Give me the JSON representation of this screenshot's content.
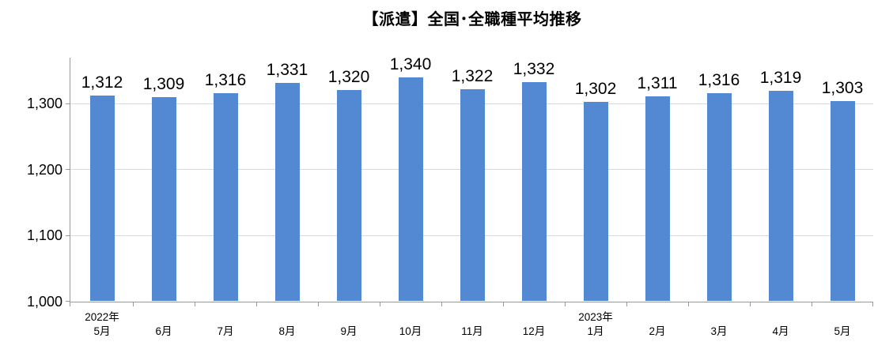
{
  "chart_data": {
    "type": "bar",
    "title": "【派遣】全国･全職種平均推移",
    "categories": [
      "5月",
      "6月",
      "7月",
      "8月",
      "9月",
      "10月",
      "11月",
      "12月",
      "1月",
      "2月",
      "3月",
      "4月",
      "5月"
    ],
    "year_annotations": [
      {
        "category_index": 0,
        "label": "2022年"
      },
      {
        "category_index": 8,
        "label": "2023年"
      }
    ],
    "values": [
      1312,
      1309,
      1316,
      1331,
      1320,
      1340,
      1322,
      1332,
      1302,
      1311,
      1316,
      1319,
      1303
    ],
    "value_labels": [
      "1,312",
      "1,309",
      "1,316",
      "1,331",
      "1,320",
      "1,340",
      "1,322",
      "1,332",
      "1,302",
      "1,311",
      "1,316",
      "1,319",
      "1,303"
    ],
    "y_tick_values": [
      1000,
      1100,
      1200,
      1300
    ],
    "y_tick_labels": [
      "1,000",
      "1,100",
      "1,200",
      "1,300"
    ],
    "ylim": [
      1000,
      1370
    ],
    "xlabel": "",
    "ylabel": "",
    "grid": true,
    "legend": "none",
    "colors": {
      "bar": "#5289D2",
      "gridline": "#D9D9D9",
      "axis": "#999999",
      "text": "#000000"
    }
  }
}
